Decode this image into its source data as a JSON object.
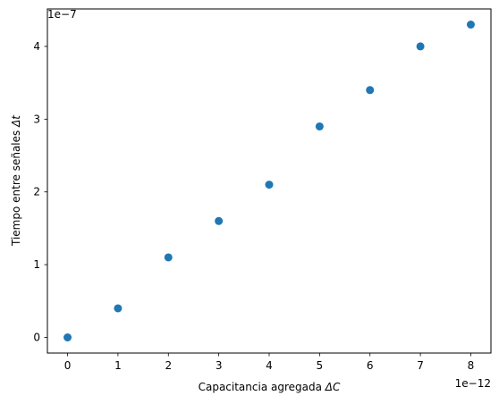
{
  "chart_data": {
    "type": "scatter",
    "x": [
      0,
      1e-12,
      2e-12,
      3e-12,
      4e-12,
      5e-12,
      6e-12,
      7e-12,
      8e-12
    ],
    "y": [
      0,
      4e-08,
      1.1e-07,
      1.6e-07,
      2.1e-07,
      2.9e-07,
      3.4e-07,
      4e-07,
      4.3e-07
    ],
    "xlabel_text": "Capacitancia agregada",
    "xlabel_symbol": "ΔC",
    "ylabel_text": "Tiempo entre señales",
    "ylabel_symbol": "Δt",
    "x_offset_label": "1e−12",
    "y_offset_label": "1e−7",
    "x_ticks": [
      0,
      1,
      2,
      3,
      4,
      5,
      6,
      7,
      8
    ],
    "x_tick_labels": [
      "0",
      "1",
      "2",
      "3",
      "4",
      "5",
      "6",
      "7",
      "8"
    ],
    "y_ticks": [
      0,
      1,
      2,
      3,
      4
    ],
    "y_tick_labels": [
      "0",
      "1",
      "2",
      "3",
      "4"
    ],
    "x_scale": 1e-12,
    "y_scale": 1e-07,
    "xlim": [
      -0.4,
      8.4
    ],
    "ylim": [
      -0.215,
      4.515
    ],
    "grid": false,
    "marker_color": "#1f77b4"
  }
}
